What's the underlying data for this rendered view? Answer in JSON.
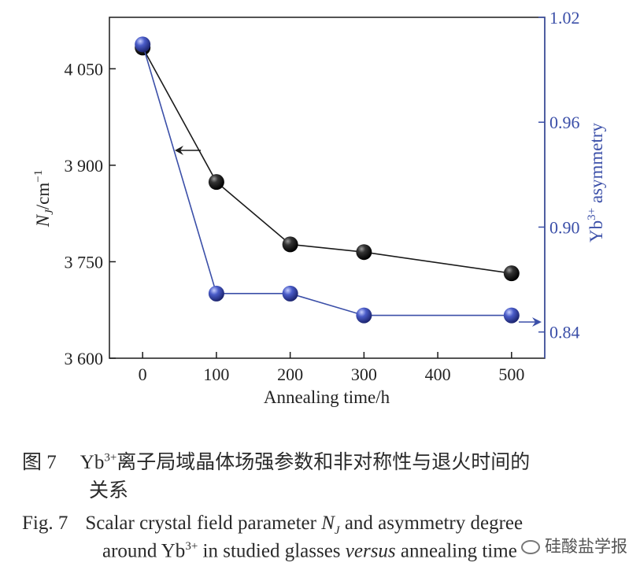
{
  "chart_data": {
    "type": "line",
    "xlabel": "Annealing time/h",
    "ylabel_left": "N_J/cm^-1",
    "ylabel_right": "Yb3+ asymmetry",
    "xlim": [
      -45,
      545
    ],
    "xticks": [
      0,
      100,
      200,
      300,
      400,
      500
    ],
    "ylim_left": [
      3600,
      4130
    ],
    "yticks_left": [
      3600,
      3750,
      3900,
      4050
    ],
    "ytick_labels_left": [
      "3 600",
      "3 750",
      "3 900",
      "4 050"
    ],
    "ylim_right": [
      0.825,
      1.02
    ],
    "yticks_right": [
      0.84,
      0.9,
      0.96,
      1.02
    ],
    "ytick_labels_right": [
      "0.84",
      "0.90",
      "0.96",
      "1.02"
    ],
    "series": [
      {
        "axis": "left",
        "color": "#1a1a1a",
        "x": [
          0,
          100,
          200,
          300,
          500
        ],
        "y": [
          4083,
          3874,
          3777,
          3765,
          3732
        ]
      },
      {
        "axis": "right",
        "color": "#3b4fa8",
        "x": [
          0,
          100,
          200,
          300,
          500
        ],
        "y": [
          1.0045,
          0.862,
          0.862,
          0.8495,
          0.8495
        ]
      }
    ],
    "annotations": [
      "arrow pointing left at black series",
      "arrow pointing right at blue series"
    ]
  },
  "caption": {
    "cn_label": "图 7",
    "cn_text_prefix": "Yb",
    "cn_text_sup": "3+",
    "cn_text_line1": "离子局域晶体场强参数和非对称性与退火时间的",
    "cn_text_line2": "关系",
    "en_label": "Fig. 7",
    "en_line1_a": "Scalar crystal field parameter ",
    "en_line1_nj": "N",
    "en_line1_nj_sub": "J",
    "en_line1_b": " and asymmetry degree",
    "en_line2_a": "around Yb",
    "en_line2_sup": "3+",
    "en_line2_b": " in studied glasses ",
    "en_line2_italic": "versus",
    "en_line2_c": " annealing time"
  },
  "watermark": "硅酸盐学报",
  "colors": {
    "black_series": "#1a1a1a",
    "blue_series": "#3b4fa8",
    "right_axis": "#3b4fa8"
  }
}
